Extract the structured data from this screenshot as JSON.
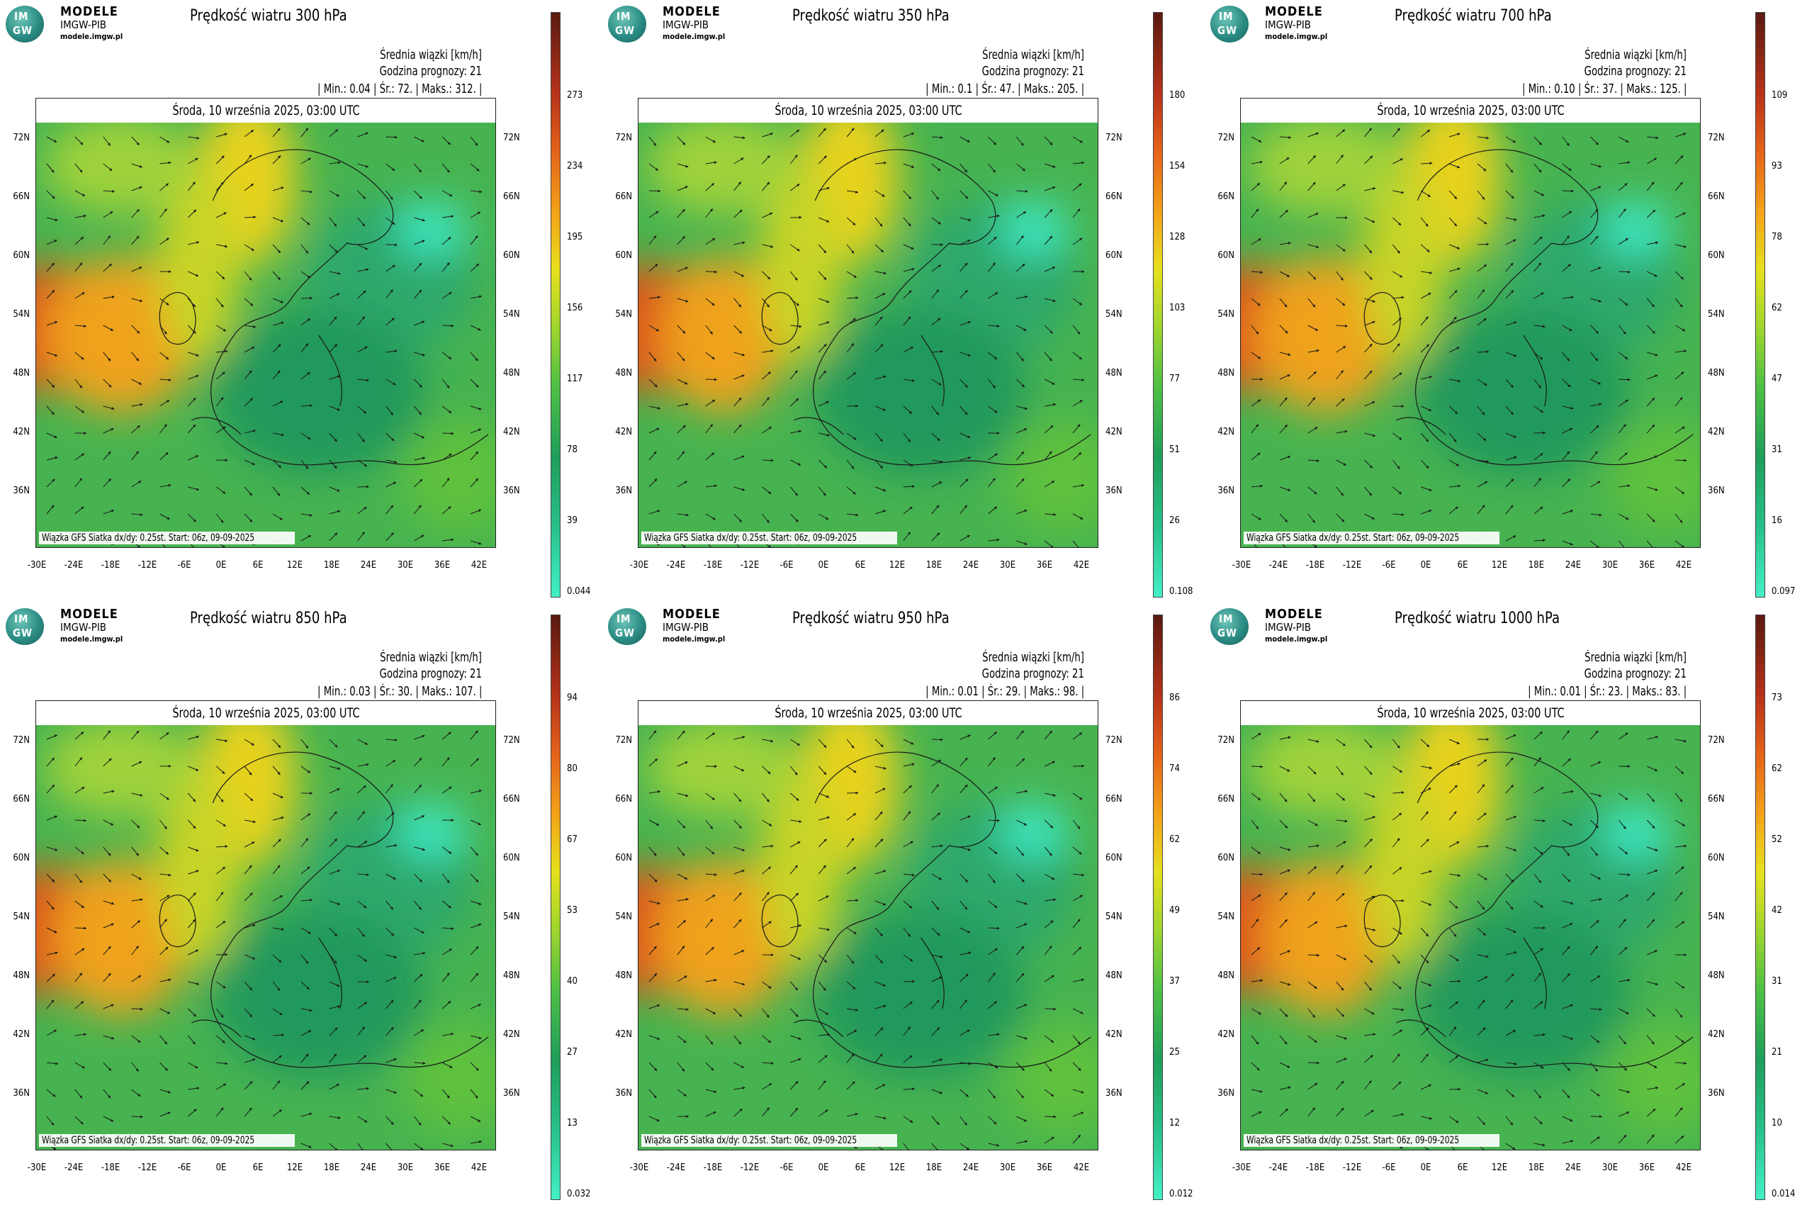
{
  "shared": {
    "logo": {
      "badge_line1": "IM",
      "badge_line2": "GW",
      "name": "MODELE",
      "org": "IMGW-PIB",
      "site": "modele.imgw.pl"
    },
    "mean_label": "Średnia wiązki [km/h]",
    "forecast_hour": "Godzina prognozy: 21",
    "date": "Środa, 10 września 2025, 03:00 UTC",
    "footer": "Wiązka GFS Siatka dx/dy: 0.25st. Start: 06z, 09-09-2025",
    "lat_labels": [
      "72N",
      "66N",
      "60N",
      "54N",
      "48N",
      "42N",
      "36N"
    ],
    "lon_labels": [
      "-30E",
      "-24E",
      "-18E",
      "-12E",
      "-6E",
      "0E",
      "6E",
      "12E",
      "18E",
      "24E",
      "30E",
      "36E",
      "42E"
    ]
  },
  "panels": [
    {
      "title": "Prędkość wiatru 300 hPa",
      "stats": "| Min.: 0.04 | Śr.: 72. | Maks.: 312. |",
      "colorbar": [
        "273",
        "234",
        "195",
        "156",
        "117",
        "78",
        "39",
        "0.044"
      ],
      "level": 0.9
    },
    {
      "title": "Prędkość wiatru 350 hPa",
      "stats": "| Min.: 0.1 | Śr.: 47. | Maks.: 205. |",
      "colorbar": [
        "180",
        "154",
        "128",
        "103",
        "77",
        "51",
        "26",
        "0.108"
      ],
      "level": 0.75
    },
    {
      "title": "Prędkość wiatru 700 hPa",
      "stats": "| Min.: 0.10 | Śr.: 37. | Maks.: 125. |",
      "colorbar": [
        "109",
        "93",
        "78",
        "62",
        "47",
        "31",
        "16",
        "0.097"
      ],
      "level": 0.85
    },
    {
      "title": "Prędkość wiatru 850 hPa",
      "stats": "| Min.: 0.03 | Śr.: 30. | Maks.: 107. |",
      "colorbar": [
        "94",
        "80",
        "67",
        "53",
        "40",
        "27",
        "13",
        "0.032"
      ],
      "level": 0.8
    },
    {
      "title": "Prędkość wiatru 950 hPa",
      "stats": "| Min.: 0.01 | Śr.: 29. | Maks.: 98. |",
      "colorbar": [
        "86",
        "74",
        "62",
        "49",
        "37",
        "25",
        "12",
        "0.012"
      ],
      "level": 0.8
    },
    {
      "title": "Prędkość wiatru 1000 hPa",
      "stats": "| Min.: 0.01 | Śr.: 23. | Maks.: 83. |",
      "colorbar": [
        "73",
        "62",
        "52",
        "42",
        "31",
        "21",
        "10",
        "0.014"
      ],
      "level": 0.75
    }
  ]
}
